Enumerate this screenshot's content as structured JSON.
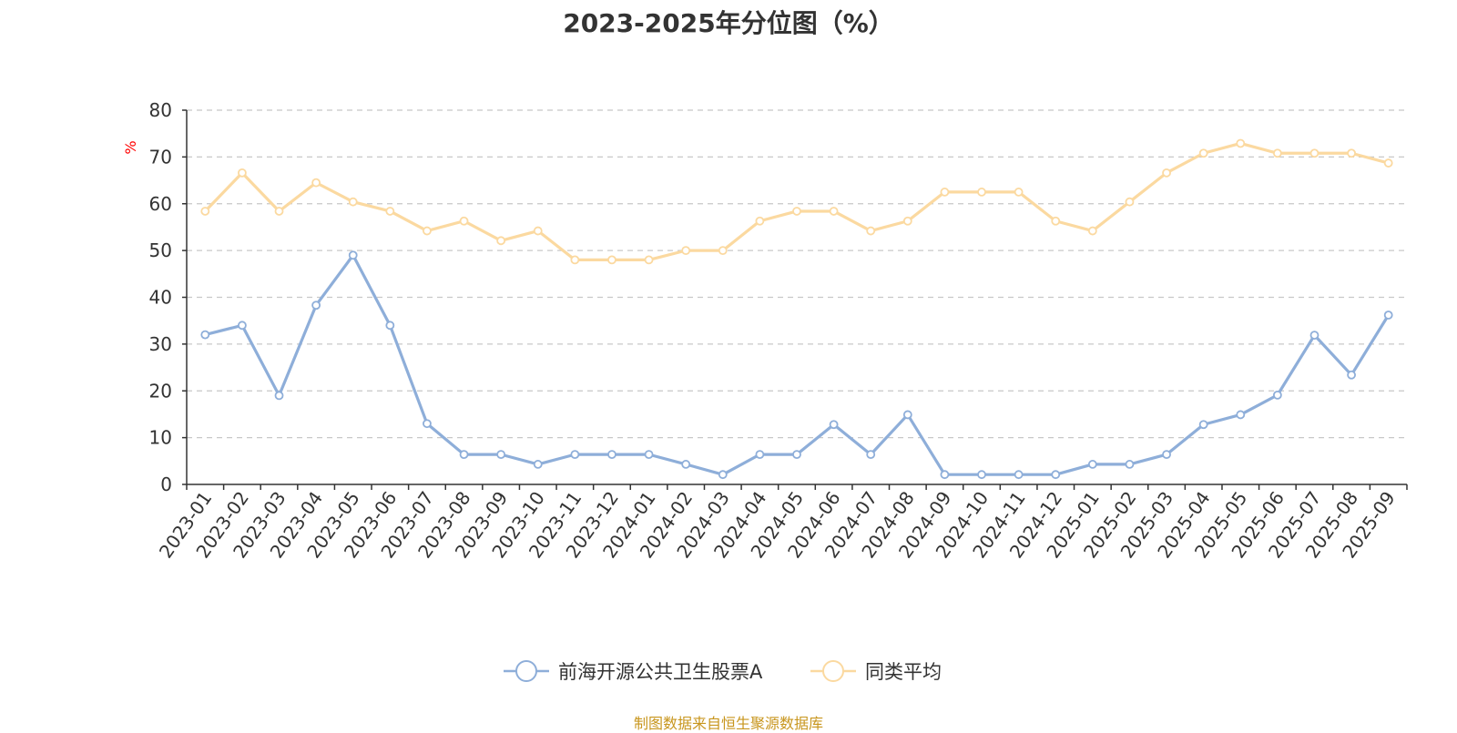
{
  "colors": {
    "series1": "#8eaed9",
    "series2": "#fbd9a0",
    "axis": "#333333",
    "grid": "#c8c8c8",
    "ylabel": "#ff0000",
    "source": "#c8961e"
  },
  "chart_data": {
    "type": "line",
    "title": "2023-2025年分位图（%）",
    "xlabel": "",
    "ylabel": "%",
    "ylim": [
      0,
      80
    ],
    "yticks": [
      0,
      10,
      20,
      30,
      40,
      50,
      60,
      70,
      80
    ],
    "grid": true,
    "legend_position": "bottom-center",
    "categories": [
      "2023-01",
      "2023-02",
      "2023-03",
      "2023-04",
      "2023-05",
      "2023-06",
      "2023-07",
      "2023-08",
      "2023-09",
      "2023-10",
      "2023-11",
      "2023-12",
      "2024-01",
      "2024-02",
      "2024-03",
      "2024-04",
      "2024-05",
      "2024-06",
      "2024-07",
      "2024-08",
      "2024-09",
      "2024-10",
      "2024-11",
      "2024-12",
      "2025-01",
      "2025-02",
      "2025-03",
      "2025-04",
      "2025-05",
      "2025-06",
      "2025-07",
      "2025-08",
      "2025-09"
    ],
    "series": [
      {
        "name": "前海开源公共卫生股票A",
        "values": [
          32,
          34,
          19,
          38.3,
          49,
          34,
          13,
          6.4,
          6.4,
          4.3,
          6.4,
          6.4,
          6.4,
          4.3,
          2.1,
          6.4,
          6.4,
          12.8,
          6.4,
          14.9,
          2.1,
          2.1,
          2.1,
          2.1,
          4.3,
          4.3,
          6.4,
          12.8,
          14.9,
          19.1,
          31.9,
          23.4,
          36.2
        ]
      },
      {
        "name": "同类平均",
        "values": [
          58.4,
          66.6,
          58.4,
          64.5,
          60.4,
          58.4,
          54.2,
          56.3,
          52.1,
          54.2,
          48,
          48,
          48,
          50,
          50,
          56.3,
          58.4,
          58.4,
          54.2,
          56.3,
          62.5,
          62.5,
          62.5,
          56.3,
          54.2,
          60.4,
          66.6,
          70.8,
          72.9,
          70.8,
          70.8,
          70.8,
          68.7
        ]
      }
    ]
  },
  "source_note": "制图数据来自恒生聚源数据库"
}
